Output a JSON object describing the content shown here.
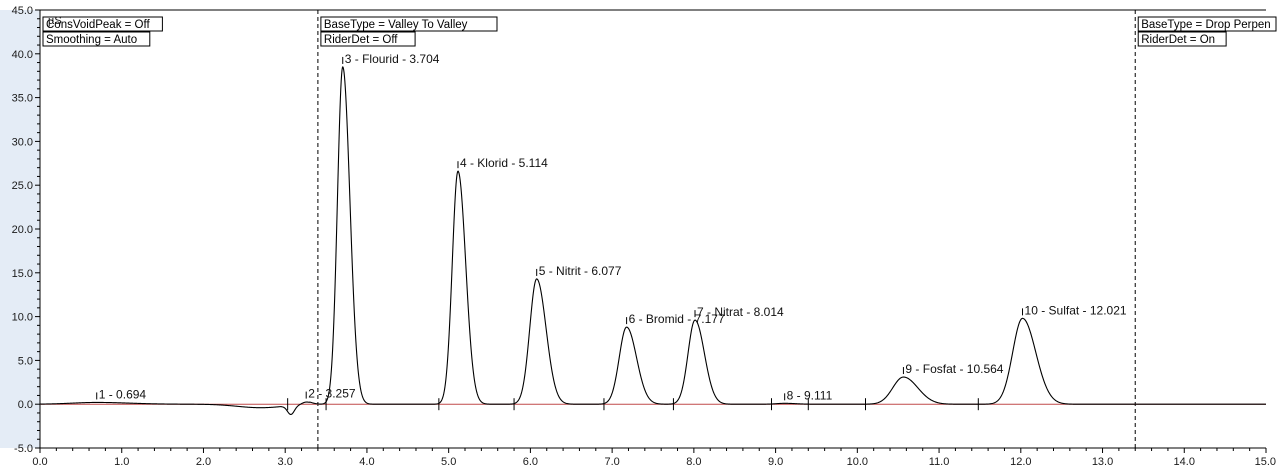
{
  "chart_data": {
    "type": "line",
    "ylabel": "µS",
    "xlim": [
      0.0,
      15.0
    ],
    "ylim": [
      -5.0,
      45.0
    ],
    "x_ticks": [
      "0.0",
      "1.0",
      "2.0",
      "3.0",
      "4.0",
      "5.0",
      "6.0",
      "7.0",
      "8.0",
      "9.0",
      "10.0",
      "11.0",
      "12.0",
      "13.0",
      "14.0",
      "15.0"
    ],
    "y_ticks": [
      "-5.0",
      "0.0",
      "5.0",
      "10.0",
      "15.0",
      "20.0",
      "25.0",
      "30.0",
      "35.0",
      "40.0",
      "45.0"
    ],
    "grid": false,
    "peaks": [
      {
        "label": "1 - 0.694",
        "rt": 0.694,
        "height": 0.2
      },
      {
        "label": "2 - 3.257",
        "rt": 3.257,
        "height": 0.3
      },
      {
        "label": "3 - Flourid - 3.704",
        "rt": 3.704,
        "height": 38.5
      },
      {
        "label": "4 - Klorid - 5.114",
        "rt": 5.114,
        "height": 26.6
      },
      {
        "label": "5 - Nitrit - 6.077",
        "rt": 6.077,
        "height": 14.3
      },
      {
        "label": "6 - Bromid - 7.177",
        "rt": 7.177,
        "height": 8.8
      },
      {
        "label": "7 - Nitrat - 8.014",
        "rt": 8.014,
        "height": 9.6
      },
      {
        "label": "8 - 9.111",
        "rt": 9.111,
        "height": 0.1
      },
      {
        "label": "9 - Fosfat - 10.564",
        "rt": 10.564,
        "height": 3.1
      },
      {
        "label": "10 - Sulfat - 12.021",
        "rt": 12.021,
        "height": 9.8
      }
    ],
    "baseline_markers": [
      3.03,
      3.5,
      4.88,
      5.8,
      6.9,
      7.75,
      8.95,
      9.4,
      10.1,
      11.48
    ],
    "event_lines": [
      3.4,
      13.4
    ],
    "annotations": [
      {
        "lines": [
          "ConsVoidPeak = Off",
          "Smoothing = Auto"
        ]
      },
      {
        "lines": [
          "BaseType = Valley To Valley",
          "RiderDet = Off"
        ]
      },
      {
        "lines": [
          "BaseType = Drop Perpen",
          "RiderDet = On"
        ]
      }
    ],
    "colors": {
      "trace": "#000000",
      "baseline": "#c04a4a",
      "axis": "#000000"
    }
  }
}
